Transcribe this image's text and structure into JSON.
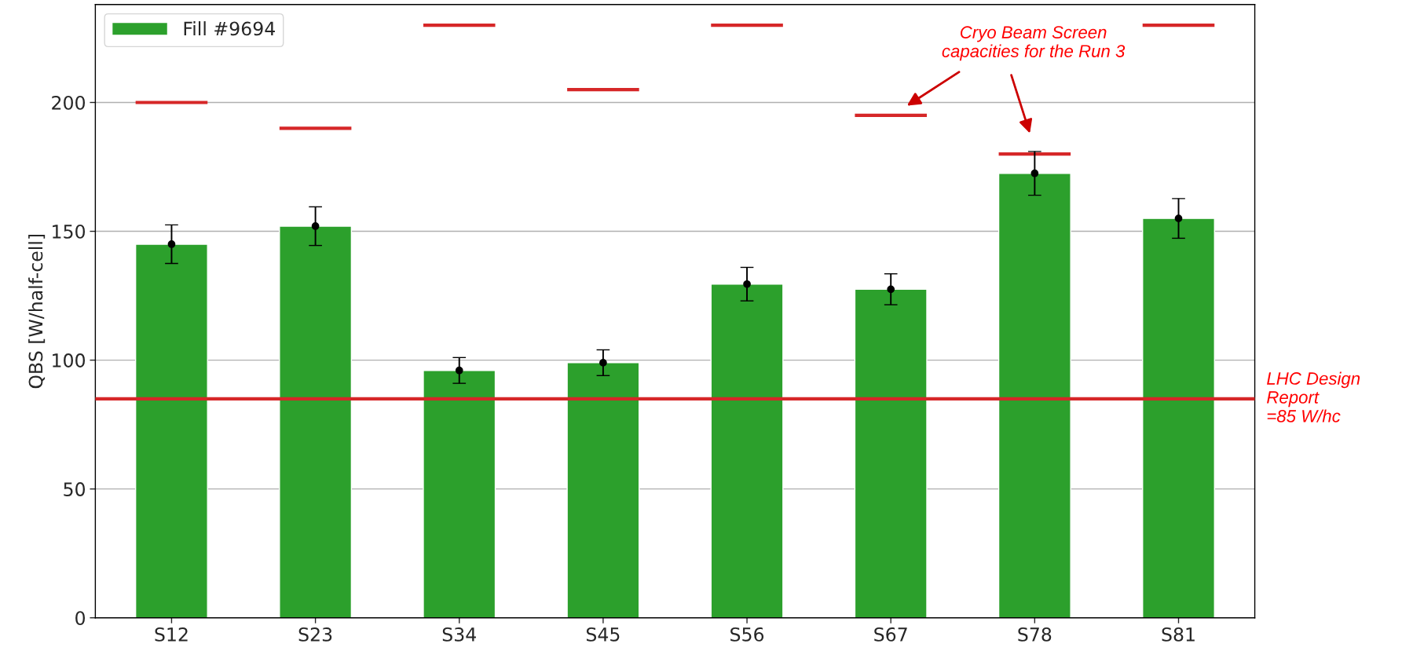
{
  "chart_data": {
    "type": "bar",
    "ylabel": "QBS [W/half-cell]",
    "categories": [
      "S12",
      "S23",
      "S34",
      "S45",
      "S56",
      "S67",
      "S78",
      "S81"
    ],
    "series": [
      {
        "name": "Fill #9694",
        "color": "#2ca02c",
        "values": [
          145,
          152,
          96,
          99,
          129.5,
          127.5,
          172.5,
          155
        ]
      },
      {
        "type": "scatter",
        "color": "#000000",
        "values": [
          145,
          152,
          96,
          99,
          129.5,
          127.5,
          172.5,
          155
        ],
        "errors": [
          7.5,
          7.5,
          5,
          5,
          6.5,
          6,
          8.5,
          7.7
        ],
        "marker": "circle"
      },
      {
        "type": "bar",
        "color": "#d62728",
        "base": [
          200,
          190,
          230,
          205,
          230,
          195,
          180,
          230
        ],
        "values": [
          0,
          0,
          0,
          0,
          0,
          0,
          0,
          0
        ]
      }
    ],
    "ylim": [
      0,
      238
    ],
    "yticks": [
      0,
      50,
      100,
      150,
      200
    ],
    "grid": "y",
    "legend": "top left",
    "ref_lines": [
      {
        "axis": "y",
        "value": 85,
        "label": "LHC Design\nReport\n=85 W/hc",
        "color": "#d62728"
      }
    ],
    "annotations": [
      "Cryo Beam Screen\ncapacities for the Run 3"
    ]
  }
}
